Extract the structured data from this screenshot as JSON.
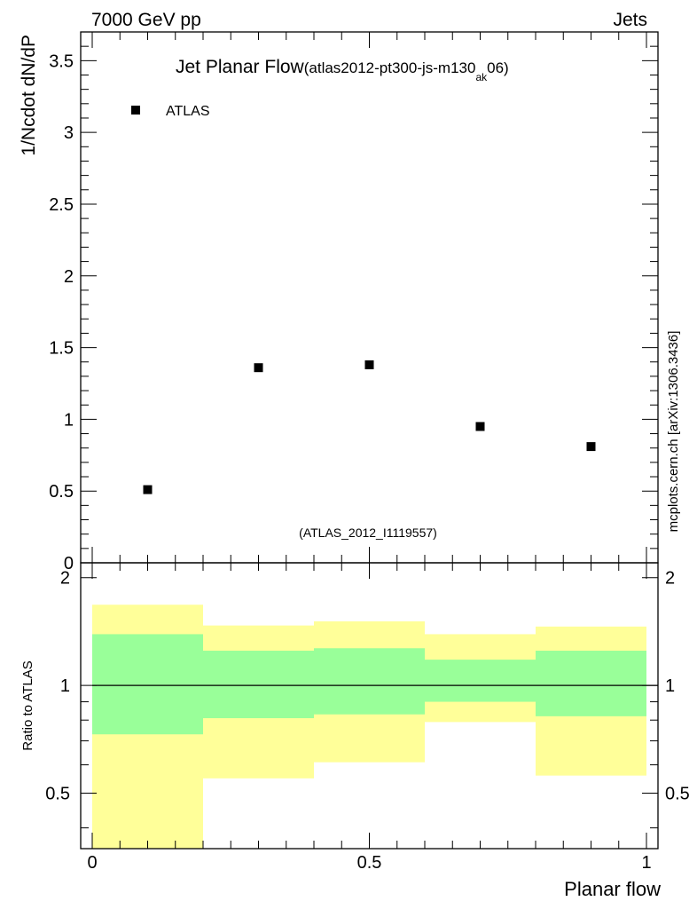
{
  "header": {
    "energy_label": "7000 GeV pp",
    "process_label": "Jets"
  },
  "side_label": "mcplots.cern.ch [arXiv:1306.3436]",
  "chart_data": [
    {
      "type": "scatter",
      "title_main": "Jet Planar Flow",
      "title_paren_open": "(atlas2012-pt300-js-m130",
      "title_subscript": "ak",
      "title_paren_close": "06)",
      "analysis_label": "(ATLAS_2012_I1119557)",
      "xlabel": "",
      "ylabel": "1/Ncdot dN/dP",
      "xlim": [
        0,
        1
      ],
      "ylim": [
        0,
        3.7
      ],
      "yticks": [
        0,
        0.5,
        1,
        1.5,
        2,
        2.5,
        3,
        3.5
      ],
      "ytick_labels": [
        "0",
        "0.5",
        "1",
        "1.5",
        "2",
        "2.5",
        "3",
        "3.5"
      ],
      "legend": {
        "position": "top-left",
        "entries": [
          {
            "label": "ATLAS",
            "marker": "square",
            "color": "#000000"
          }
        ]
      },
      "series": [
        {
          "name": "ATLAS",
          "x": [
            0.1,
            0.3,
            0.5,
            0.7,
            0.9
          ],
          "y": [
            0.51,
            1.36,
            1.38,
            0.95,
            0.81
          ]
        }
      ]
    },
    {
      "type": "area",
      "xlabel": "Planar flow",
      "ylabel": "Ratio to ATLAS",
      "xlim": [
        0,
        1
      ],
      "ylim": [
        0.35,
        2.2
      ],
      "yscale": "log",
      "xticks": [
        0,
        0.5,
        1
      ],
      "xtick_labels": [
        "0",
        "0.5",
        "1"
      ],
      "yticks": [
        0.5,
        1,
        2
      ],
      "ytick_labels": [
        "0.5",
        "1",
        "2"
      ],
      "reference_line": 1,
      "bins": [
        {
          "x_low": 0.0,
          "x_high": 0.2,
          "inner_low": 0.73,
          "inner_high": 1.39,
          "outer_low": 0.35,
          "outer_high": 1.68
        },
        {
          "x_low": 0.2,
          "x_high": 0.4,
          "inner_low": 0.81,
          "inner_high": 1.25,
          "outer_low": 0.55,
          "outer_high": 1.47
        },
        {
          "x_low": 0.4,
          "x_high": 0.6,
          "inner_low": 0.83,
          "inner_high": 1.27,
          "outer_low": 0.61,
          "outer_high": 1.51
        },
        {
          "x_low": 0.6,
          "x_high": 0.8,
          "inner_low": 0.9,
          "inner_high": 1.18,
          "outer_low": 0.79,
          "outer_high": 1.39
        },
        {
          "x_low": 0.8,
          "x_high": 1.0,
          "inner_low": 0.82,
          "inner_high": 1.25,
          "outer_low": 0.56,
          "outer_high": 1.46
        }
      ],
      "colors": {
        "inner_band": "#99ff99",
        "outer_band": "#ffff99",
        "reference": "#000000"
      }
    }
  ]
}
